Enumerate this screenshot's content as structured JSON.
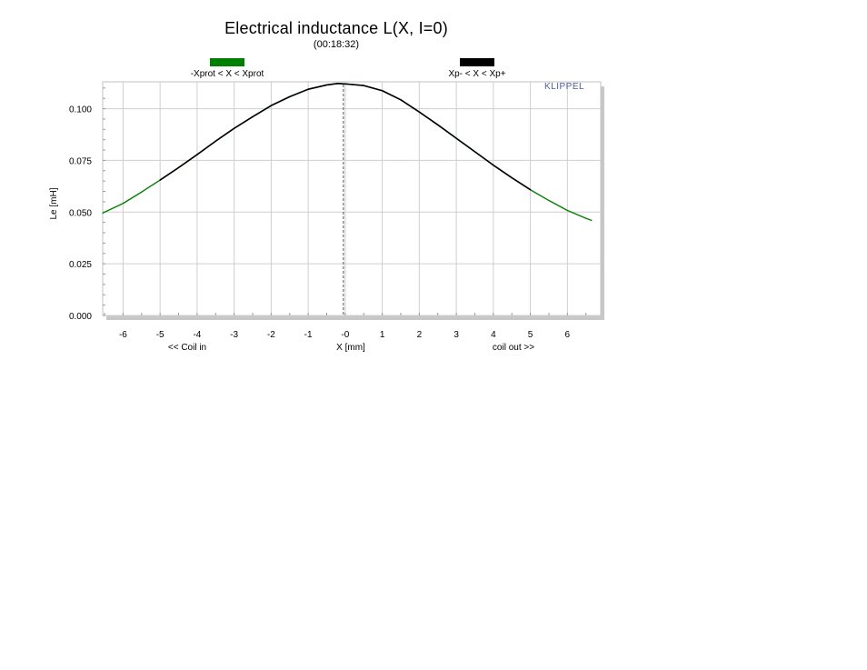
{
  "chart_data": {
    "type": "line",
    "title": "Electrical inductance L(X, I=0)",
    "subtitle": "(00:18:32)",
    "logo": "KLIPPEL",
    "xlabel": "X [mm]",
    "ylabel": "Le [mH]",
    "x_left_note": "<< Coil in",
    "x_right_note": "coil out >>",
    "xlim": [
      -6.55,
      6.9
    ],
    "ylim": [
      0,
      0.113
    ],
    "grid": true,
    "legend_placement": "top",
    "x_ticks": [
      -6,
      -5,
      -4,
      -3,
      -2,
      -1,
      0,
      1,
      2,
      3,
      4,
      5,
      6
    ],
    "x_tick_labels": [
      "-6",
      "-5",
      "-4",
      "-3",
      "-2",
      "-1",
      "-0",
      "1",
      "2",
      "3",
      "4",
      "5",
      "6"
    ],
    "y_ticks": [
      0,
      0.025,
      0.05,
      0.075,
      0.1
    ],
    "y_tick_labels": [
      "0.000",
      "0.025",
      "0.050",
      "0.075",
      "0.100"
    ],
    "rest_position_marker_x": -0.05,
    "series": [
      {
        "name": "-Xprot < X < Xprot",
        "color": "#007f00",
        "x": [
          -6.55,
          -6.0,
          -5.5,
          -5.0,
          -4.5,
          -4.0,
          -3.5,
          -3.0,
          -2.5,
          -2.0,
          -1.5,
          -1.0,
          -0.5,
          -0.2,
          0.0,
          0.5,
          1.0,
          1.5,
          2.0,
          2.5,
          3.0,
          3.5,
          4.0,
          4.5,
          5.0,
          5.5,
          6.0,
          6.5,
          6.65
        ],
        "y": [
          0.0495,
          0.0542,
          0.0597,
          0.0655,
          0.0715,
          0.0778,
          0.0843,
          0.0905,
          0.0961,
          0.1015,
          0.1058,
          0.1094,
          0.1115,
          0.1122,
          0.112,
          0.1112,
          0.1087,
          0.1043,
          0.0984,
          0.0922,
          0.0857,
          0.0792,
          0.0727,
          0.0666,
          0.0608,
          0.0556,
          0.0508,
          0.047,
          0.046
        ]
      },
      {
        "name": "Xp- < X < Xp+",
        "color": "#000000",
        "x": [
          -5.0,
          -4.5,
          -4.0,
          -3.5,
          -3.0,
          -2.5,
          -2.0,
          -1.5,
          -1.0,
          -0.5,
          -0.2,
          0.0,
          0.5,
          1.0,
          1.5,
          2.0,
          2.5,
          3.0,
          3.5,
          4.0,
          4.5,
          5.0
        ],
        "y": [
          0.0655,
          0.0715,
          0.0778,
          0.0843,
          0.0905,
          0.0961,
          0.1015,
          0.1058,
          0.1094,
          0.1115,
          0.1122,
          0.112,
          0.1112,
          0.1087,
          0.1043,
          0.0984,
          0.0922,
          0.0857,
          0.0792,
          0.0727,
          0.0666,
          0.0608
        ]
      }
    ]
  }
}
